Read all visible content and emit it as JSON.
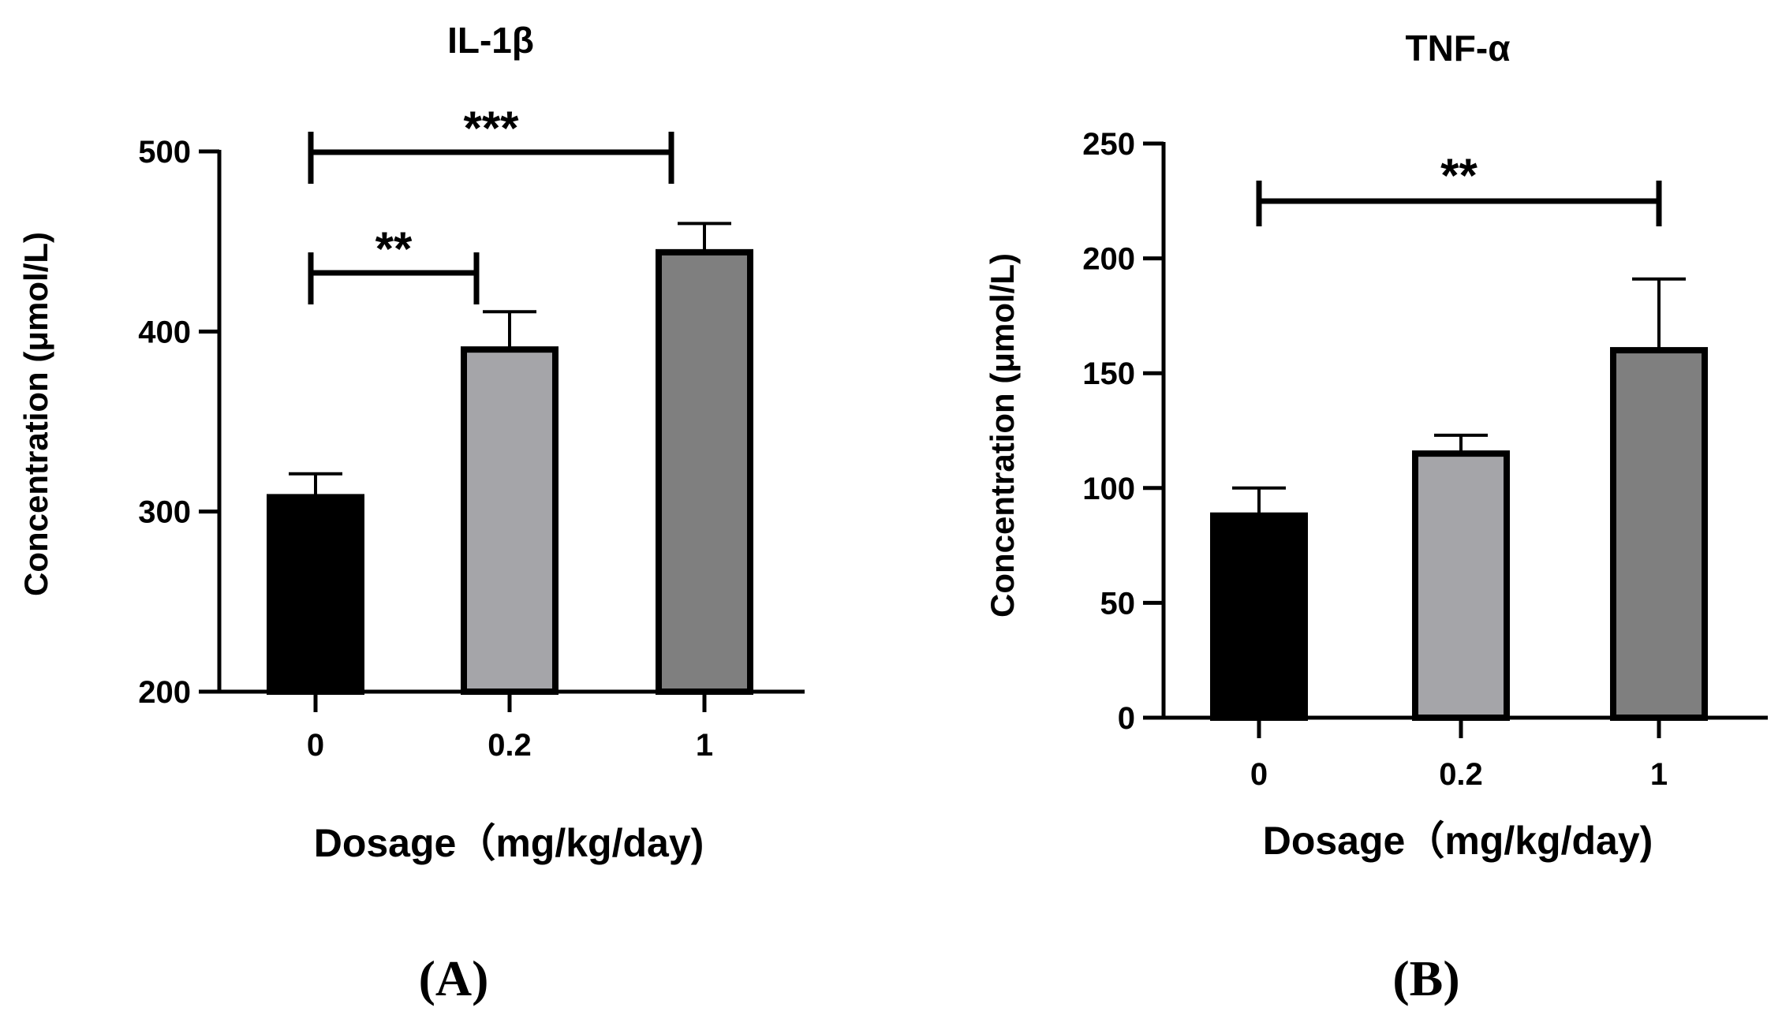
{
  "chart_data": [
    {
      "type": "bar",
      "panel": "(A)",
      "title": "IL-1β",
      "xlabel": "Dosage（mg/kg/day)",
      "ylabel": "Concentration (μmol/L)",
      "categories": [
        "0",
        "0.2",
        "1"
      ],
      "values": [
        308,
        390,
        444
      ],
      "errors": [
        13,
        21,
        16
      ],
      "colors": [
        "#000000",
        "#a5a5a9",
        "#7f7f7f"
      ],
      "ylim": [
        200,
        500
      ],
      "yticks": [
        200,
        300,
        400,
        500
      ],
      "significance": [
        {
          "from": 0,
          "to": 2,
          "label": "***"
        },
        {
          "from": 0,
          "to": 1,
          "label": "**"
        }
      ]
    },
    {
      "type": "bar",
      "panel": "(B)",
      "title": "TNF-α",
      "xlabel": "Dosage（mg/kg/day)",
      "ylabel": "Concentration (μmol/L)",
      "categories": [
        "0",
        "0.2",
        "1"
      ],
      "values": [
        88,
        115,
        160
      ],
      "errors": [
        12,
        8,
        31
      ],
      "colors": [
        "#000000",
        "#a5a5a9",
        "#7f7f7f"
      ],
      "ylim": [
        0,
        250
      ],
      "yticks": [
        0,
        50,
        100,
        150,
        200,
        250
      ],
      "significance": [
        {
          "from": 0,
          "to": 2,
          "label": "**"
        }
      ]
    }
  ]
}
